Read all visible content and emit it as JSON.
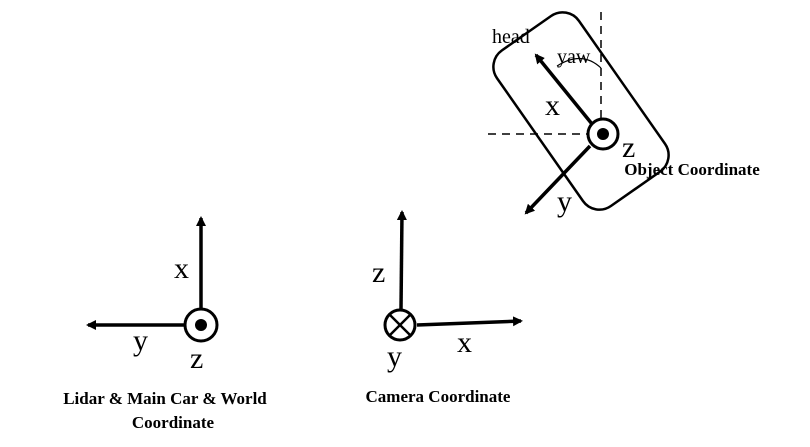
{
  "frames": {
    "lidar": {
      "axis_x": "x",
      "axis_y": "y",
      "axis_z": "z",
      "caption_line1": "Lidar & Main Car & World",
      "caption_line2": "Coordinate"
    },
    "camera": {
      "axis_z": "z",
      "axis_x": "x",
      "axis_y": "y",
      "caption": "Camera Coordinate"
    },
    "object": {
      "head_label": "head",
      "yaw_label": "yaw",
      "axis_x": "x",
      "axis_y": "y",
      "axis_z": "z",
      "caption": "Object Coordinate"
    }
  },
  "colors": {
    "ink": "#000000",
    "background": "#ffffff"
  }
}
